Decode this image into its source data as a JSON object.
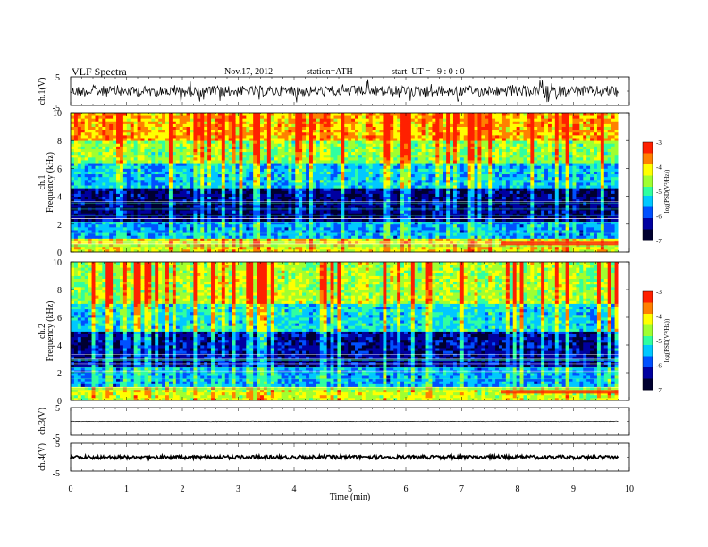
{
  "header": {
    "title": "VLF Spectra",
    "date": "Nov.17, 2012",
    "station": "station=ATH",
    "start": "start  UT =   9 : 0 : 0"
  },
  "chart_data": [
    {
      "type": "line",
      "panel": "ch1-waveform",
      "ylabel": "ch.1(V)",
      "yticks": [
        "5",
        "-5"
      ],
      "ylim": [
        -5,
        5
      ],
      "xlim": [
        0,
        10
      ],
      "data_end_min": 9.8,
      "color": "#000000"
    },
    {
      "type": "heatmap",
      "panel": "ch1-spectrogram",
      "ylabel": "ch.1",
      "ylabel2": "Frequency  (kHz)",
      "yticks": [
        "0",
        "2",
        "4",
        "6",
        "8",
        "10"
      ],
      "ylim": [
        0,
        10
      ],
      "xlim": [
        0,
        10
      ],
      "data_end_min": 9.8,
      "colorbar": {
        "label": "log(PSD(V²/Hz))",
        "ticks": [
          "-3",
          "-4",
          "-5",
          "-6",
          "-7"
        ],
        "range": [
          -7,
          -3
        ]
      },
      "bands": [
        {
          "freq_khz": [
            0,
            1
          ],
          "level": -4.2
        },
        {
          "freq_khz": [
            1,
            2.2
          ],
          "level": -5.6
        },
        {
          "freq_khz": [
            2.2,
            4.6
          ],
          "level": -6.5
        },
        {
          "freq_khz": [
            4.6,
            6.5
          ],
          "level": -5.4
        },
        {
          "freq_khz": [
            6.5,
            8
          ],
          "level": -4.6
        },
        {
          "freq_khz": [
            8,
            10
          ],
          "level": -3.8
        }
      ]
    },
    {
      "type": "heatmap",
      "panel": "ch2-spectrogram",
      "ylabel": "ch.2",
      "ylabel2": "Frequency  (kHz)",
      "yticks": [
        "0",
        "2",
        "4",
        "6",
        "8",
        "10"
      ],
      "ylim": [
        0,
        10
      ],
      "xlim": [
        0,
        10
      ],
      "data_end_min": 9.8,
      "colorbar": {
        "label": "log(PSD(V²/Hz))",
        "ticks": [
          "-3",
          "-4",
          "-5",
          "-6",
          "-7"
        ],
        "range": [
          -7,
          -3
        ]
      },
      "bands": [
        {
          "freq_khz": [
            0,
            1
          ],
          "level": -4.4
        },
        {
          "freq_khz": [
            1,
            2.5
          ],
          "level": -5.6
        },
        {
          "freq_khz": [
            2.5,
            5
          ],
          "level": -6.4
        },
        {
          "freq_khz": [
            5,
            7
          ],
          "level": -5.3
        },
        {
          "freq_khz": [
            7,
            10
          ],
          "level": -4.5
        }
      ]
    },
    {
      "type": "line",
      "panel": "ch3-waveform",
      "ylabel": "ch.3(V)",
      "yticks": [
        "5",
        "-5"
      ],
      "ylim": [
        -5,
        5
      ],
      "xlim": [
        0,
        10
      ],
      "data_end_min": 9.8,
      "color": "#000000"
    },
    {
      "type": "line",
      "panel": "ch4-waveform",
      "ylabel": "ch.4(V)",
      "yticks": [
        "5",
        "-5"
      ],
      "ylim": [
        -5,
        5
      ],
      "xlim": [
        0,
        10
      ],
      "data_end_min": 9.8,
      "color": "#000000"
    }
  ],
  "xaxis": {
    "label": "Time  (min)",
    "ticks": [
      "0",
      "1",
      "2",
      "3",
      "4",
      "5",
      "6",
      "7",
      "8",
      "9",
      "10"
    ]
  },
  "colormap": [
    "#000030",
    "#0000a0",
    "#0050ff",
    "#00c8ff",
    "#30ffa0",
    "#a0ff30",
    "#ffff00",
    "#ff8000",
    "#ff2000",
    "#ffffff"
  ]
}
